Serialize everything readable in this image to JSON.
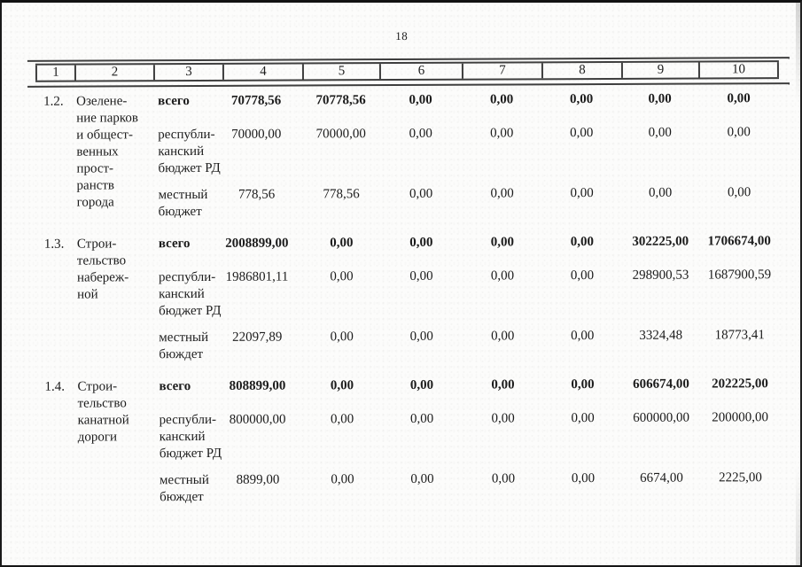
{
  "page": {
    "number": "18"
  },
  "colors": {
    "ink": "#1c1c1c",
    "rule": "#3e3e3e",
    "paper": "#fcfcfb"
  },
  "table": {
    "header_cols": [
      "1",
      "2",
      "3",
      "4",
      "5",
      "6",
      "7",
      "8",
      "9",
      "10"
    ],
    "rows": [
      {
        "num": "1.2.",
        "name_lines": [
          "Озелене-",
          "ние парков",
          "и общест-",
          "венных",
          "прост-",
          "ранств",
          "города"
        ],
        "subrows": [
          {
            "bold": true,
            "label_lines": [
              "всего"
            ],
            "values": [
              "70778,56",
              "70778,56",
              "0,00",
              "0,00",
              "0,00",
              "0,00",
              "0,00"
            ]
          },
          {
            "bold": false,
            "label_lines": [
              "республи-",
              "канский",
              "бюджет РД"
            ],
            "values": [
              "70000,00",
              "70000,00",
              "0,00",
              "0,00",
              "0,00",
              "0,00",
              "0,00"
            ]
          },
          {
            "bold": false,
            "label_lines": [
              "местный",
              "бюджет"
            ],
            "values": [
              "778,56",
              "778,56",
              "0,00",
              "0,00",
              "0,00",
              "0,00",
              "0,00"
            ]
          }
        ]
      },
      {
        "num": "1.3.",
        "name_lines": [
          "Строи-",
          "тельство",
          "набереж-",
          "ной"
        ],
        "subrows": [
          {
            "bold": true,
            "label_lines": [
              "всего"
            ],
            "values": [
              "2008899,00",
              "0,00",
              "0,00",
              "0,00",
              "0,00",
              "302225,00",
              "1706674,00"
            ]
          },
          {
            "bold": false,
            "label_lines": [
              "республи-",
              "канский",
              "бюджет РД"
            ],
            "values": [
              "1986801,11",
              "0,00",
              "0,00",
              "0,00",
              "0,00",
              "298900,53",
              "1687900,59"
            ]
          },
          {
            "bold": false,
            "label_lines": [
              "местный",
              "бюждет"
            ],
            "values": [
              "22097,89",
              "0,00",
              "0,00",
              "0,00",
              "0,00",
              "3324,48",
              "18773,41"
            ]
          }
        ]
      },
      {
        "num": "1.4.",
        "name_lines": [
          "Строи-",
          "тельство",
          "канатной",
          "дороги"
        ],
        "subrows": [
          {
            "bold": true,
            "label_lines": [
              "всего"
            ],
            "values": [
              "808899,00",
              "0,00",
              "0,00",
              "0,00",
              "0,00",
              "606674,00",
              "202225,00"
            ]
          },
          {
            "bold": false,
            "label_lines": [
              "республи-",
              "канский",
              "бюджет РД"
            ],
            "values": [
              "800000,00",
              "0,00",
              "0,00",
              "0,00",
              "0,00",
              "600000,00",
              "200000,00"
            ]
          },
          {
            "bold": false,
            "label_lines": [
              "местный",
              "бюждет"
            ],
            "values": [
              "8899,00",
              "0,00",
              "0,00",
              "0,00",
              "0,00",
              "6674,00",
              "2225,00"
            ]
          }
        ]
      }
    ]
  }
}
